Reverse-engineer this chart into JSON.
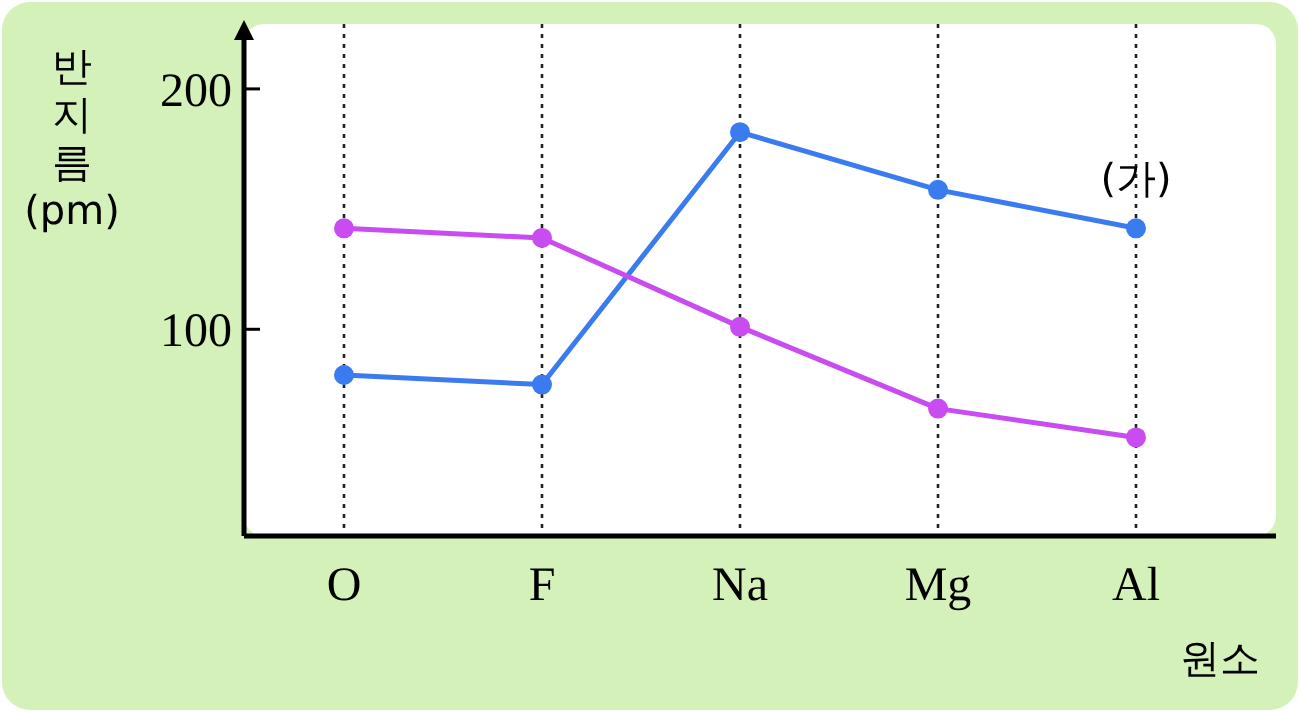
{
  "chart_data": {
    "type": "line",
    "xlabel": "원소",
    "ylabel": "반지름(pm)",
    "categories": [
      "O",
      "F",
      "Na",
      "Mg",
      "Al"
    ],
    "series": [
      {
        "color": "#3a7cf0",
        "values": [
          81,
          77,
          182,
          158,
          142
        ]
      },
      {
        "color": "#c94cf0",
        "values": [
          142,
          138,
          101,
          67,
          55
        ]
      }
    ],
    "ylim": [
      14,
      227
    ],
    "yticks": [
      100,
      200
    ],
    "grid": "x",
    "marker": "circle",
    "line_style": "solid",
    "annotations": [
      {
        "text": "(가)",
        "x": "Al",
        "y": 142
      }
    ]
  }
}
